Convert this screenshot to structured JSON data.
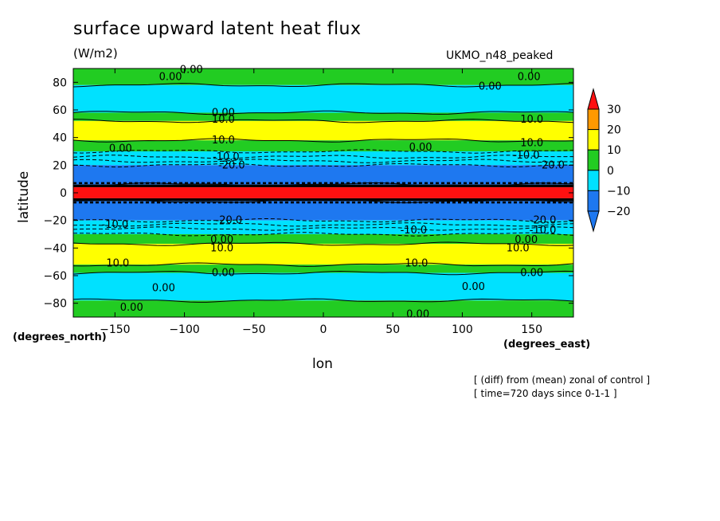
{
  "title": "surface upward latent heat flux",
  "units": "(W/m2)",
  "model": "UKMO_n48_peaked",
  "notes": {
    "line1": "[ (diff) from (mean) zonal of control ]",
    "line2": "[ time=720 days since 0-1-1 ]"
  },
  "chart_data": {
    "type": "heatmap",
    "title": "surface upward latent heat flux",
    "subtitle": "(W/m2)",
    "xlabel": "lon",
    "ylabel": "latitude",
    "x_unit": "(degrees_east)",
    "y_unit": "(degrees_north)",
    "xlim": [
      -180,
      180
    ],
    "ylim": [
      -90,
      90
    ],
    "x_ticks": [
      -150,
      -100,
      -50,
      0,
      50,
      100,
      150
    ],
    "y_ticks": [
      -80,
      -60,
      -40,
      -20,
      0,
      20,
      40,
      60,
      80
    ],
    "colorbar": {
      "ticks": [
        -20,
        -10,
        0,
        10,
        20,
        30
      ],
      "levels": [
        {
          "min": null,
          "max": -20,
          "color": "#1e78f0"
        },
        {
          "min": -20,
          "max": -10,
          "color": "#1e78f0"
        },
        {
          "min": -10,
          "max": 0,
          "color": "#00e1ff"
        },
        {
          "min": 0,
          "max": 10,
          "color": "#22cc22"
        },
        {
          "min": 10,
          "max": 20,
          "color": "#ffff00"
        },
        {
          "min": 20,
          "max": 30,
          "color": "#ff9900"
        },
        {
          "min": 30,
          "max": null,
          "color": "#ff1010"
        }
      ]
    },
    "bands": [
      {
        "lat_min": 78,
        "lat_max": 90,
        "level": "0 to 10",
        "color": "#22cc22"
      },
      {
        "lat_min": 58,
        "lat_max": 78,
        "level": "-10 to 0",
        "color": "#00e1ff"
      },
      {
        "lat_min": 52,
        "lat_max": 58,
        "level": "0 to 10",
        "color": "#22cc22"
      },
      {
        "lat_min": 38,
        "lat_max": 52,
        "level": "10 to 20",
        "color": "#ffff00"
      },
      {
        "lat_min": 30,
        "lat_max": 38,
        "level": "0 to 10",
        "color": "#22cc22"
      },
      {
        "lat_min": 20,
        "lat_max": 30,
        "level": "-10 to 0",
        "color": "#00e1ff"
      },
      {
        "lat_min": 6,
        "lat_max": 20,
        "level": "below -20",
        "color": "#1e78f0"
      },
      {
        "lat_min": 4,
        "lat_max": 6,
        "level": "below -20",
        "color": "#000000"
      },
      {
        "lat_min": -4,
        "lat_max": 4,
        "level": "above 30",
        "color": "#ff1010"
      },
      {
        "lat_min": -6,
        "lat_max": -4,
        "level": "below -20",
        "color": "#000000"
      },
      {
        "lat_min": -20,
        "lat_max": -6,
        "level": "below -20",
        "color": "#1e78f0"
      },
      {
        "lat_min": -30,
        "lat_max": -20,
        "level": "-10 to 0",
        "color": "#00e1ff"
      },
      {
        "lat_min": -37,
        "lat_max": -30,
        "level": "0 to 10",
        "color": "#22cc22"
      },
      {
        "lat_min": -52,
        "lat_max": -37,
        "level": "10 to 20",
        "color": "#ffff00"
      },
      {
        "lat_min": -58,
        "lat_max": -52,
        "level": "0 to 10",
        "color": "#22cc22"
      },
      {
        "lat_min": -78,
        "lat_max": -58,
        "level": "-10 to 0",
        "color": "#00e1ff"
      },
      {
        "lat_min": -90,
        "lat_max": -78,
        "level": "0 to 10",
        "color": "#22cc22"
      }
    ],
    "contour_labels": [
      {
        "text": "0.00",
        "lon": -110,
        "lat": 84
      },
      {
        "text": "0.00",
        "lon": -95,
        "lat": 89
      },
      {
        "text": "0.00",
        "lon": 120,
        "lat": 77
      },
      {
        "text": "0.00",
        "lon": 148,
        "lat": 84
      },
      {
        "text": "0.00",
        "lon": -72,
        "lat": 58
      },
      {
        "text": "10.0",
        "lon": -72,
        "lat": 53
      },
      {
        "text": "10.0",
        "lon": 150,
        "lat": 53
      },
      {
        "text": "10.0",
        "lon": -72,
        "lat": 38
      },
      {
        "text": "0.00",
        "lon": -146,
        "lat": 32
      },
      {
        "text": "0.00",
        "lon": 70,
        "lat": 33
      },
      {
        "text": "10.0",
        "lon": 150,
        "lat": 36
      },
      {
        "text": "-10.0",
        "lon": -70,
        "lat": 26
      },
      {
        "text": "-10.0",
        "lon": 146,
        "lat": 27
      },
      {
        "text": "-20.0",
        "lon": -66,
        "lat": 20
      },
      {
        "text": "-20.0",
        "lon": 164,
        "lat": 20
      },
      {
        "text": "-20.0",
        "lon": -68,
        "lat": -20
      },
      {
        "text": "-20.0",
        "lon": 158,
        "lat": -20
      },
      {
        "text": "-10.0",
        "lon": -150,
        "lat": -23
      },
      {
        "text": "-10.0",
        "lon": 65,
        "lat": -27
      },
      {
        "text": "-10.0",
        "lon": 158,
        "lat": -27
      },
      {
        "text": "0.00",
        "lon": -73,
        "lat": -34
      },
      {
        "text": "10.0",
        "lon": -73,
        "lat": -40
      },
      {
        "text": "0.00",
        "lon": 146,
        "lat": -34
      },
      {
        "text": "10.0",
        "lon": 140,
        "lat": -40
      },
      {
        "text": "10.0",
        "lon": -148,
        "lat": -51
      },
      {
        "text": "10.0",
        "lon": 67,
        "lat": -51
      },
      {
        "text": "0.00",
        "lon": -72,
        "lat": -58
      },
      {
        "text": "0.00",
        "lon": 150,
        "lat": -58
      },
      {
        "text": "0.00",
        "lon": -115,
        "lat": -69
      },
      {
        "text": "0.00",
        "lon": 108,
        "lat": -68
      },
      {
        "text": "0.00",
        "lon": -138,
        "lat": -83
      },
      {
        "text": "0.00",
        "lon": 68,
        "lat": -88
      }
    ]
  }
}
